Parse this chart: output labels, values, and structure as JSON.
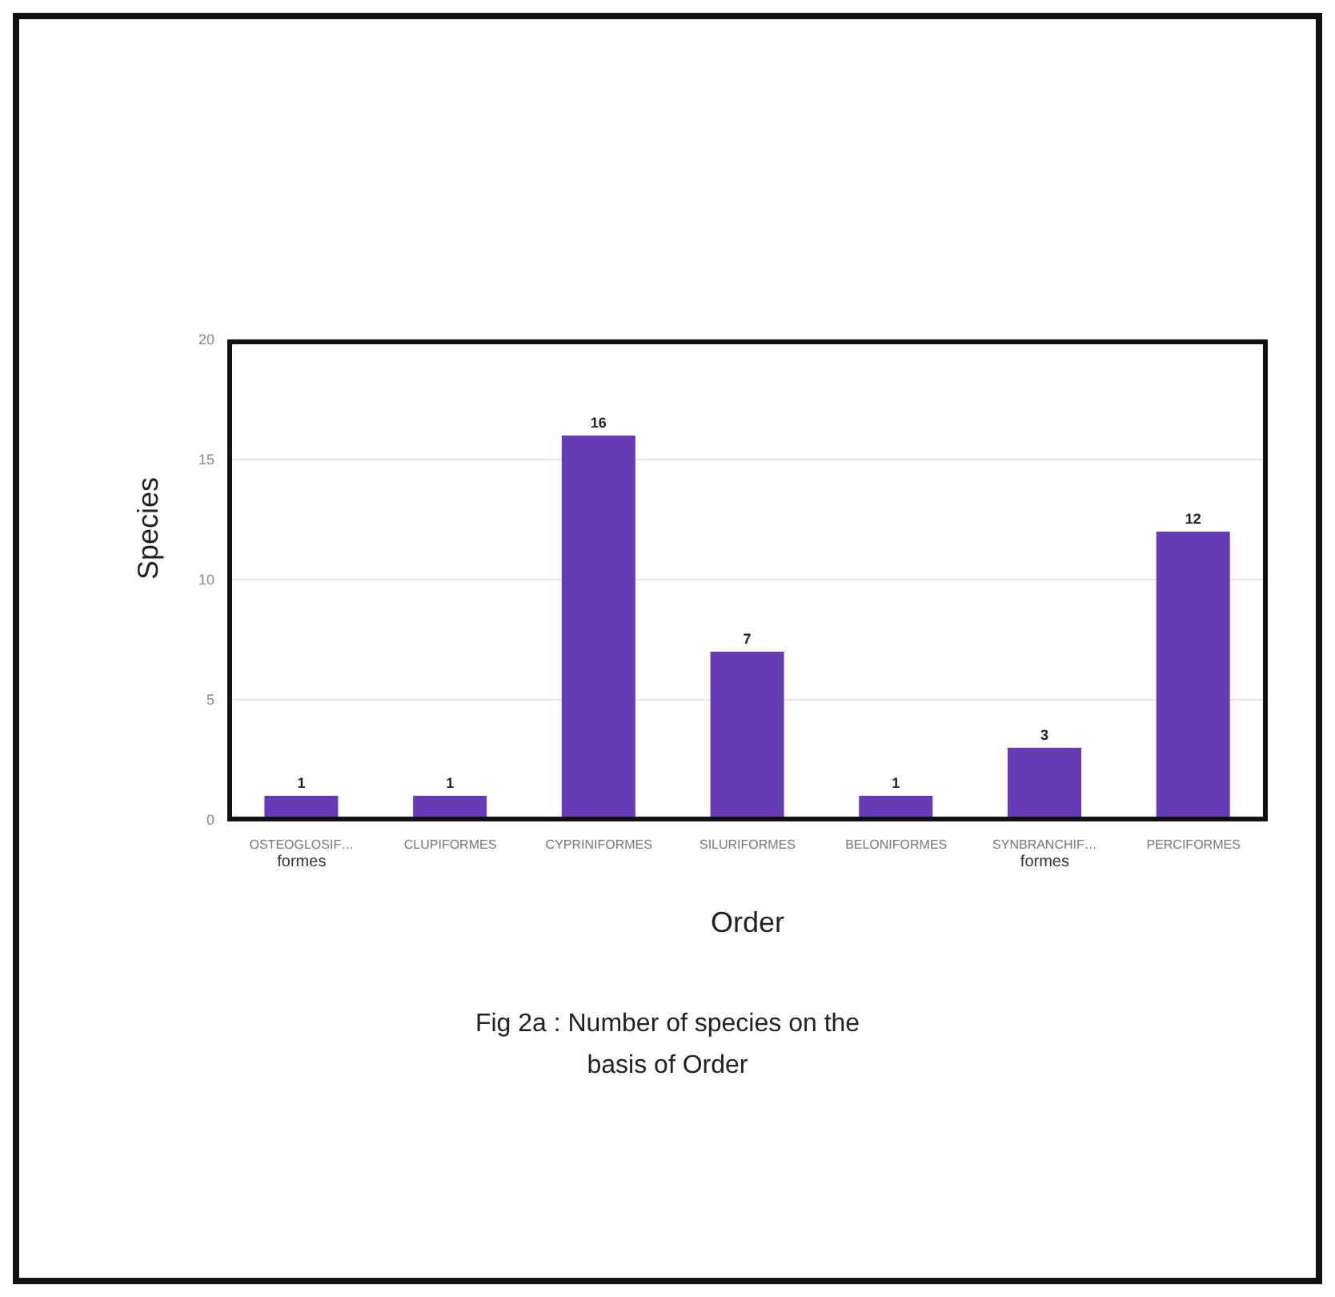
{
  "chart_data": {
    "type": "bar",
    "xlabel": "Order",
    "ylabel": "Species",
    "categories": [
      "OSTEOGLOSIF… formes",
      "CLUPIFORMES",
      "CYPRINIFORMES",
      "SILURIFORMES",
      "BELONIFORMES",
      "SYNBRANCHIF… formes",
      "PERCIFORMES"
    ],
    "values": [
      1,
      1,
      16,
      7,
      1,
      3,
      12
    ],
    "color": "#673ab7",
    "ylim": [
      0,
      20
    ],
    "yticks": [
      0,
      5,
      10,
      15,
      20
    ],
    "grid": "y",
    "data_labels": true,
    "annotations": [
      "Fig 2a : Number of species on the\nbasis of Order"
    ]
  }
}
